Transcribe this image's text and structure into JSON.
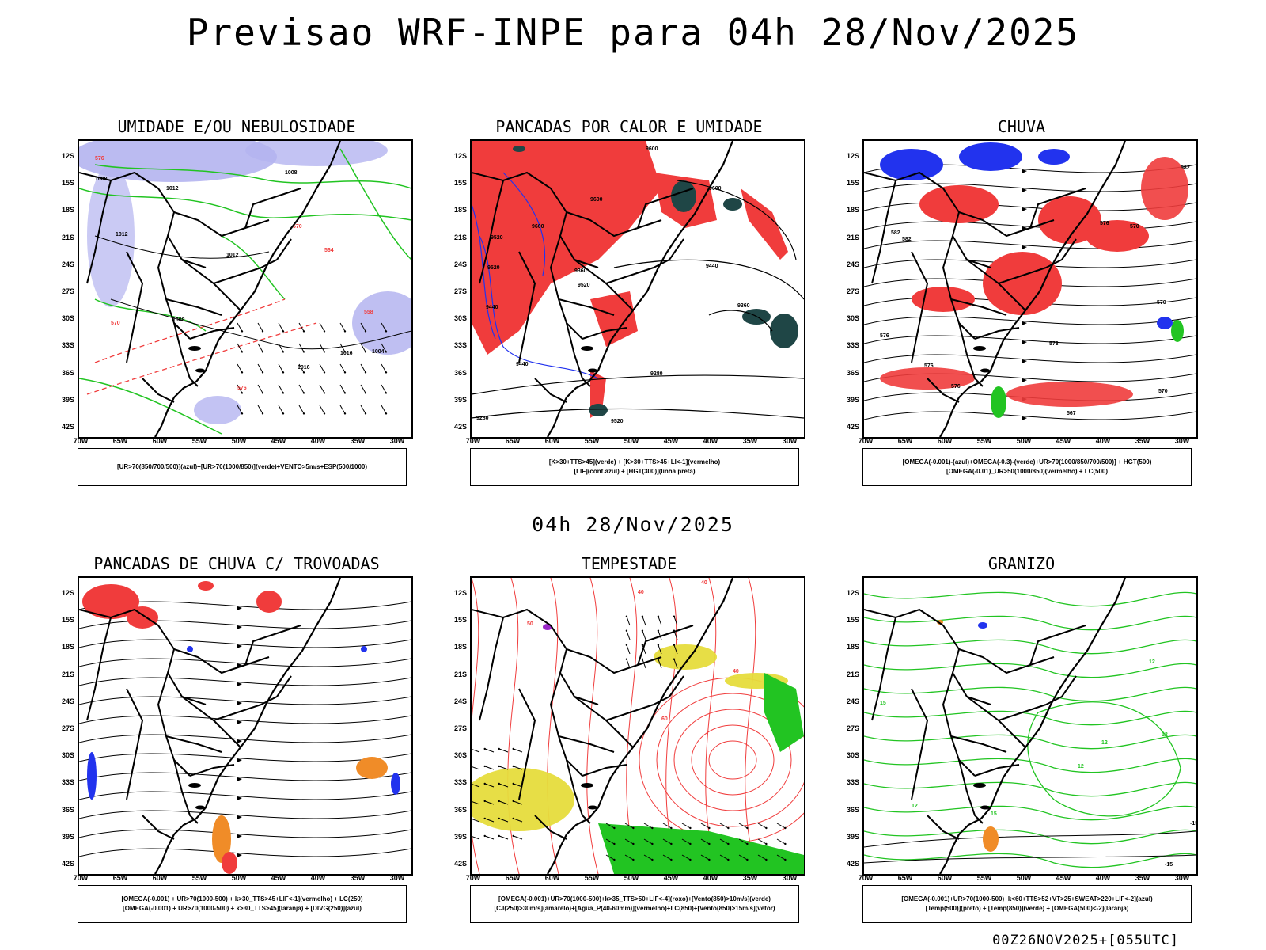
{
  "header": {
    "title": "Previsao WRF-INPE  para 04h 28/Nov/2025"
  },
  "middle": {
    "date": "04h 28/Nov/2025"
  },
  "footer": {
    "run": "00Z26NOV2025+[055UTC]"
  },
  "axes": {
    "lat": [
      "12S",
      "15S",
      "18S",
      "21S",
      "24S",
      "27S",
      "30S",
      "33S",
      "36S",
      "39S",
      "42S"
    ],
    "lon": [
      "70W",
      "65W",
      "60W",
      "55W",
      "50W",
      "45W",
      "40W",
      "35W",
      "30W"
    ]
  },
  "colors": {
    "red": "#f03c3c",
    "green": "#22c422",
    "blue": "#2233ee",
    "lavender": "#b4b4f0",
    "yellow": "#e6dc3c",
    "darkteal": "#1f4646",
    "orange": "#f08c28",
    "purple": "#9a28c8"
  },
  "panels": [
    {
      "id": "umidade",
      "title": "UMIDADE E/OU NEBULOSIDADE",
      "legend": [
        "[UR>70(850/700/500)](azul)+[UR>70(1000/850)](verde)+VENTO>5m/s+ESP(500/1000)"
      ],
      "labels": [
        "1008",
        "1012",
        "1008",
        "1012",
        "1008",
        "1012",
        "1016",
        "1016",
        "576",
        "570",
        "564",
        "558",
        "570",
        "576",
        "1004"
      ]
    },
    {
      "id": "pancadas_calor",
      "title": "PANCADAS POR CALOR E UMIDADE",
      "legend": [
        "[K>30+TTS>45](verde) + [K>30+TTS>45+LI<-1](vermelho)",
        "[LIF](cont.azul) + [HGT(300)](linha preta)"
      ],
      "labels": [
        "9600",
        "9600",
        "9600",
        "9520",
        "9520",
        "9440",
        "9440",
        "9360",
        "9360",
        "9280",
        "9280",
        "9520",
        "9600",
        "9440",
        "9520"
      ]
    },
    {
      "id": "chuva",
      "title": "CHUVA",
      "legend": [
        "[OMEGA(-0.001)-(azul)+OMEGA(-0.3)-(verde)+UR>70(1000/850/700/500)] + HGT(500)",
        "[OMEGA(-0.01)_UR>50(1000/850)(vermelho) + LC(500)"
      ],
      "labels": [
        "582",
        "582",
        "576",
        "570",
        "573",
        "576",
        "567",
        "570",
        "576",
        "570",
        "582",
        "576"
      ]
    },
    {
      "id": "trovoadas",
      "title": "PANCADAS DE CHUVA C/ TROVOADAS",
      "legend": [
        "[OMEGA(-0.001) + UR>70(1000-500) + k>30_TTS>45+LIF<-1](vermelho) + LC(250)",
        "[OMEGA(-0.001) + UR>70(1000-500) + k>30_TTS>45](laranja) + [DIVG(250)](azul)"
      ],
      "labels": []
    },
    {
      "id": "tempestade",
      "title": "TEMPESTADE",
      "legend": [
        "[OMEGA(-0.001)+UR>70(1000-500)+k>35_TTS>50+LIF<-4](roxo)+[Vento(850)>10m/s](verde)",
        "[CJ(250)>30m/s](amarelo)+[Agua_P(40-60mm)](vermelho)+LC(850)+[Vento(850)>15m/s](vetor)"
      ],
      "labels": [
        "40",
        "40",
        "50",
        "40",
        "60"
      ]
    },
    {
      "id": "granizo",
      "title": "GRANIZO",
      "legend": [
        "[OMEGA(-0.001)+UR>70(1000-500)+k<60+TTS>52+VT>25+SWEAT>220+LIF<-2](azul)",
        "[Temp(500)](preto) + [Temp(850)](verde) + [OMEGA(500)<-2](laranja)"
      ],
      "labels": [
        "12",
        "12",
        "15",
        "12",
        "12",
        "-15",
        "-15",
        "12",
        "15"
      ]
    }
  ]
}
